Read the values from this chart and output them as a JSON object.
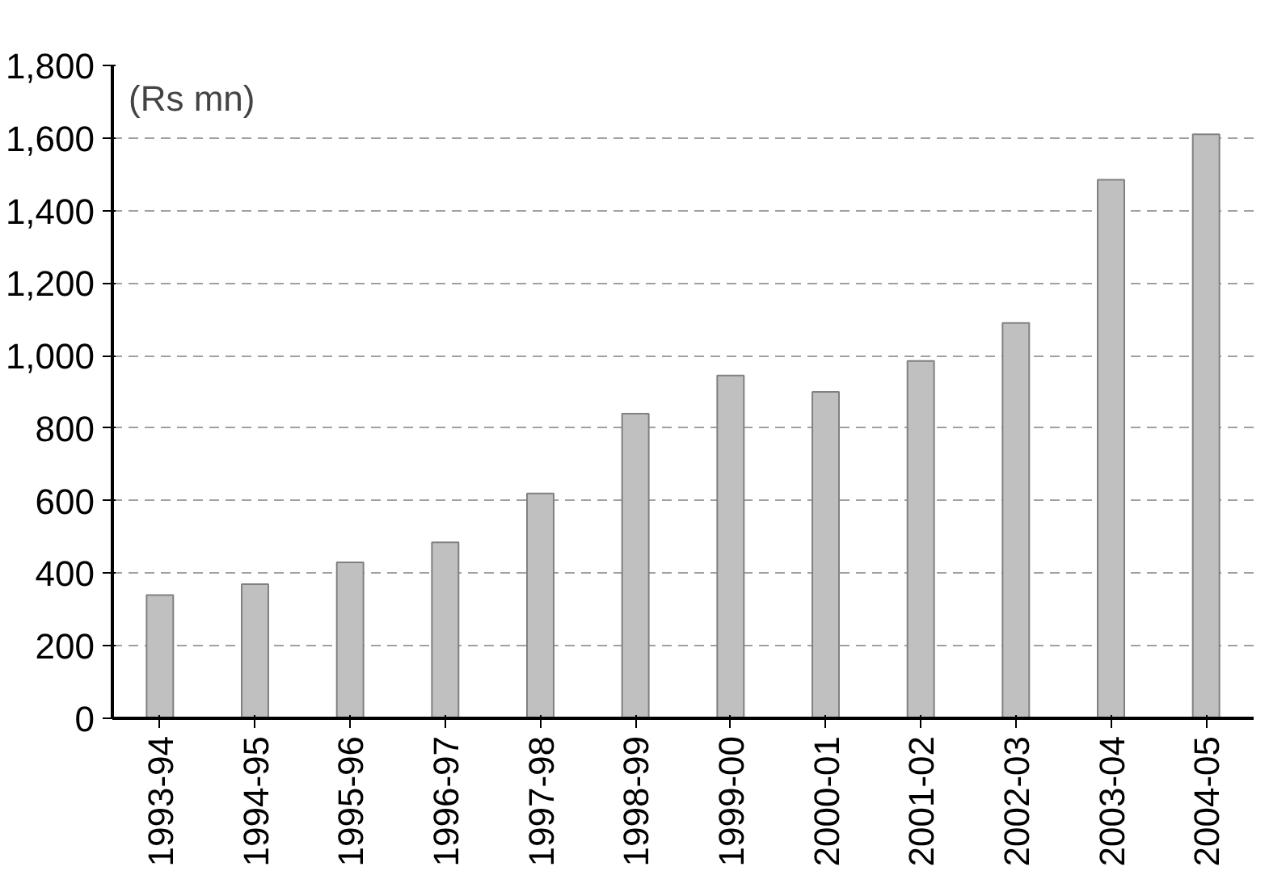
{
  "chart_data": {
    "type": "bar",
    "annotations": [
      "(Rs mn)"
    ],
    "categories": [
      "1993-94",
      "1994-95",
      "1995-96",
      "1996-97",
      "1997-98",
      "1998-99",
      "1999-00",
      "2000-01",
      "2001-02",
      "2002-03",
      "2003-04",
      "2004-05"
    ],
    "values": [
      340,
      370,
      430,
      485,
      620,
      840,
      945,
      900,
      985,
      1090,
      1485,
      1610
    ],
    "color": "#c0c0c0",
    "ylim": [
      0,
      1800
    ],
    "yticks": [
      0,
      {
        "value": 200,
        "label": "200"
      },
      {
        "value": 400,
        "label": "400"
      },
      {
        "value": 600,
        "label": "600"
      },
      {
        "value": 800,
        "label": "800"
      },
      {
        "value": 1000,
        "label": "1,000"
      },
      {
        "value": 1200,
        "label": "1,200"
      },
      {
        "value": 1400,
        "label": "1,400"
      },
      {
        "value": 1600,
        "label": "1,600"
      },
      {
        "value": 1800,
        "label": "1,800"
      }
    ],
    "grid": "y"
  }
}
